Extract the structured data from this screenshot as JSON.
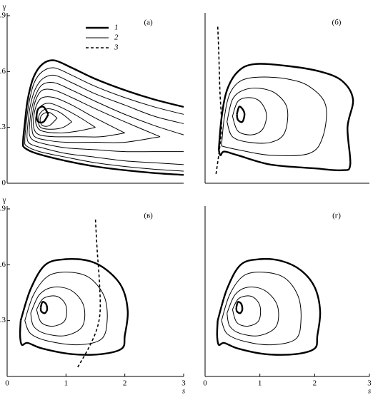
{
  "chart_data": [
    {
      "type": "contour",
      "panel": "(а)",
      "xlim": [
        0,
        3
      ],
      "ylim": [
        0,
        0.9
      ],
      "yticks": [
        0,
        0.3,
        0.6,
        0.9
      ],
      "ylabel": "γ",
      "series": [
        {
          "name": "1",
          "linestyle": "solid",
          "linewidth": 2.4,
          "curves": [
            {
              "x": [
                3,
                2.5,
                2,
                1.5,
                1.1,
                0.8,
                0.6,
                0.45,
                0.35,
                0.3,
                0.27,
                0.3,
                0.5,
                1,
                1.5,
                2,
                2.5,
                3
              ],
              "y": [
                0.41,
                0.45,
                0.5,
                0.56,
                0.62,
                0.66,
                0.64,
                0.57,
                0.45,
                0.32,
                0.22,
                0.19,
                0.16,
                0.12,
                0.09,
                0.07,
                0.055,
                0.045
              ]
            },
            {
              "x": [
                0.7,
                0.62,
                0.53,
                0.5,
                0.53,
                0.62,
                0.7
              ],
              "y": [
                0.37,
                0.41,
                0.4,
                0.36,
                0.33,
                0.33,
                0.37
              ]
            }
          ]
        },
        {
          "name": "2",
          "linestyle": "solid",
          "linewidth": 1,
          "curves": [
            {
              "x": [
                3,
                2.5,
                2,
                1.5,
                1.1,
                0.8,
                0.6,
                0.46,
                0.37,
                0.32,
                0.3,
                0.33,
                0.55,
                1,
                1.5,
                2,
                2.5,
                3
              ],
              "y": [
                0.37,
                0.41,
                0.46,
                0.52,
                0.58,
                0.62,
                0.6,
                0.54,
                0.43,
                0.31,
                0.23,
                0.2,
                0.17,
                0.14,
                0.11,
                0.09,
                0.075,
                0.065
              ]
            },
            {
              "x": [
                3,
                2.5,
                2,
                1.5,
                1.1,
                0.8,
                0.6,
                0.47,
                0.39,
                0.35,
                0.34,
                0.4,
                0.6,
                1,
                1.5,
                2,
                2.5,
                3
              ],
              "y": [
                0.32,
                0.36,
                0.42,
                0.48,
                0.54,
                0.58,
                0.56,
                0.5,
                0.41,
                0.31,
                0.24,
                0.21,
                0.19,
                0.16,
                0.14,
                0.12,
                0.11,
                0.1
              ]
            },
            {
              "x": [
                3,
                2.5,
                2,
                1.5,
                1.1,
                0.8,
                0.6,
                0.48,
                0.41,
                0.38,
                0.38,
                0.45,
                0.65,
                1,
                1.5,
                2,
                2.5,
                3
              ],
              "y": [
                0.26,
                0.31,
                0.37,
                0.44,
                0.5,
                0.54,
                0.53,
                0.47,
                0.39,
                0.31,
                0.26,
                0.23,
                0.21,
                0.19,
                0.18,
                0.17,
                0.17,
                0.17
              ]
            },
            {
              "x": [
                2.6,
                2,
                1.5,
                1.1,
                0.8,
                0.6,
                0.49,
                0.43,
                0.42,
                0.47,
                0.7,
                1,
                1.5,
                2,
                2.6
              ],
              "y": [
                0.25,
                0.33,
                0.4,
                0.46,
                0.5,
                0.5,
                0.45,
                0.37,
                0.3,
                0.25,
                0.23,
                0.22,
                0.22,
                0.22,
                0.25
              ]
            },
            {
              "x": [
                2,
                1.5,
                1.1,
                0.8,
                0.6,
                0.5,
                0.45,
                0.46,
                0.55,
                0.8,
                1.2,
                1.6,
                2
              ],
              "y": [
                0.27,
                0.35,
                0.42,
                0.46,
                0.46,
                0.42,
                0.35,
                0.29,
                0.26,
                0.25,
                0.25,
                0.25,
                0.27
              ]
            },
            {
              "x": [
                1.5,
                1.2,
                0.9,
                0.7,
                0.56,
                0.49,
                0.5,
                0.6,
                0.9,
                1.2,
                1.5
              ],
              "y": [
                0.3,
                0.36,
                0.41,
                0.43,
                0.41,
                0.36,
                0.31,
                0.28,
                0.27,
                0.28,
                0.3
              ]
            },
            {
              "x": [
                1.1,
                0.9,
                0.7,
                0.57,
                0.53,
                0.57,
                0.75,
                0.95,
                1.1
              ],
              "y": [
                0.33,
                0.38,
                0.4,
                0.38,
                0.34,
                0.3,
                0.29,
                0.3,
                0.33
              ]
            },
            {
              "x": [
                0.85,
                0.72,
                0.6,
                0.56,
                0.6,
                0.72,
                0.85
              ],
              "y": [
                0.35,
                0.38,
                0.37,
                0.34,
                0.31,
                0.31,
                0.35
              ]
            }
          ]
        },
        {
          "name": "3",
          "linestyle": "dashed",
          "linewidth": 1.6,
          "curves": []
        }
      ]
    },
    {
      "type": "contour",
      "panel": "(б)",
      "xlim": [
        0,
        3
      ],
      "ylim": [
        0,
        0.9
      ],
      "series": [
        {
          "linestyle": "solid",
          "linewidth": 2.4,
          "curves": [
            {
              "x": [
                0.25,
                0.3,
                0.4,
                0.6,
                0.9,
                1.5,
                2.1,
                2.5,
                2.7,
                2.6,
                2.65,
                2.5,
                2,
                1.2,
                0.6,
                0.35,
                0.28,
                0.25
              ],
              "y": [
                0.18,
                0.35,
                0.5,
                0.6,
                0.64,
                0.63,
                0.6,
                0.55,
                0.45,
                0.3,
                0.1,
                0.07,
                0.08,
                0.1,
                0.15,
                0.17,
                0.15,
                0.18
              ]
            },
            {
              "x": [
                0.58,
                0.62,
                0.68,
                0.72,
                0.68,
                0.6,
                0.58
              ],
              "y": [
                0.37,
                0.41,
                0.4,
                0.37,
                0.33,
                0.34,
                0.37
              ]
            }
          ]
        },
        {
          "linestyle": "solid",
          "linewidth": 1,
          "curves": [
            {
              "x": [
                0.3,
                0.35,
                0.45,
                0.65,
                1,
                1.5,
                1.9,
                2.2,
                2.15,
                1.9,
                1.2,
                0.6,
                0.3
              ],
              "y": [
                0.2,
                0.35,
                0.48,
                0.55,
                0.57,
                0.56,
                0.52,
                0.42,
                0.25,
                0.16,
                0.15,
                0.18,
                0.2
              ]
            },
            {
              "x": [
                0.4,
                0.5,
                0.7,
                1,
                1.3,
                1.5,
                1.45,
                1.2,
                0.8,
                0.5,
                0.4
              ],
              "y": [
                0.33,
                0.45,
                0.5,
                0.51,
                0.48,
                0.4,
                0.27,
                0.22,
                0.22,
                0.25,
                0.33
              ]
            },
            {
              "x": [
                0.5,
                0.6,
                0.8,
                1,
                1.12,
                1.05,
                0.85,
                0.6,
                0.5
              ],
              "y": [
                0.36,
                0.44,
                0.46,
                0.44,
                0.37,
                0.29,
                0.26,
                0.28,
                0.36
              ]
            }
          ]
        },
        {
          "linestyle": "dashed",
          "linewidth": 1.6,
          "curves": [
            {
              "x": [
                0.2,
                0.27,
                0.3,
                0.27,
                0.25,
                0.23
              ],
              "y": [
                0.05,
                0.2,
                0.32,
                0.5,
                0.7,
                0.85
              ]
            }
          ]
        }
      ]
    },
    {
      "type": "contour",
      "panel": "(в)",
      "xlim": [
        0,
        3
      ],
      "ylim": [
        0,
        0.9
      ],
      "xticks": [
        0,
        1,
        2,
        3
      ],
      "yticks": [
        0.3,
        0.6,
        0.9
      ],
      "xlabel": "s",
      "ylabel": "γ",
      "series": [
        {
          "linestyle": "solid",
          "linewidth": 2.4,
          "curves": [
            {
              "x": [
                0.23,
                0.4,
                0.65,
                1,
                1.4,
                1.7,
                1.95,
                2.05,
                2,
                1.95,
                1.6,
                1.1,
                0.6,
                0.35,
                0.25,
                0.22,
                0.23
              ],
              "y": [
                0.3,
                0.47,
                0.6,
                0.63,
                0.62,
                0.57,
                0.48,
                0.35,
                0.22,
                0.15,
                0.12,
                0.12,
                0.15,
                0.18,
                0.17,
                0.22,
                0.3
              ]
            },
            {
              "x": [
                0.57,
                0.6,
                0.66,
                0.68,
                0.64,
                0.58,
                0.57
              ],
              "y": [
                0.37,
                0.4,
                0.39,
                0.36,
                0.34,
                0.35,
                0.37
              ]
            }
          ]
        },
        {
          "linestyle": "solid",
          "linewidth": 1,
          "curves": [
            {
              "x": [
                0.3,
                0.45,
                0.7,
                1.05,
                1.4,
                1.65,
                1.7,
                1.6,
                1.2,
                0.7,
                0.4,
                0.3
              ],
              "y": [
                0.3,
                0.44,
                0.54,
                0.56,
                0.53,
                0.43,
                0.3,
                0.2,
                0.17,
                0.19,
                0.23,
                0.3
              ]
            },
            {
              "x": [
                0.4,
                0.55,
                0.8,
                1.1,
                1.3,
                1.28,
                1,
                0.65,
                0.45,
                0.4
              ],
              "y": [
                0.34,
                0.44,
                0.48,
                0.46,
                0.38,
                0.27,
                0.22,
                0.23,
                0.27,
                0.34
              ]
            },
            {
              "x": [
                0.5,
                0.62,
                0.85,
                1,
                0.98,
                0.78,
                0.58,
                0.5
              ],
              "y": [
                0.36,
                0.42,
                0.43,
                0.38,
                0.3,
                0.27,
                0.29,
                0.36
              ]
            }
          ]
        },
        {
          "linestyle": "dashed",
          "linewidth": 1.6,
          "curves": [
            {
              "x": [
                1.2,
                1.38,
                1.52,
                1.58,
                1.57,
                1.53,
                1.5
              ],
              "y": [
                0.05,
                0.15,
                0.25,
                0.35,
                0.5,
                0.68,
                0.85
              ]
            }
          ]
        }
      ]
    },
    {
      "type": "contour",
      "panel": "(г)",
      "xlim": [
        0,
        3
      ],
      "ylim": [
        0,
        0.9
      ],
      "xticks": [
        0,
        1,
        2,
        3
      ],
      "xlabel": "s",
      "series": [
        {
          "linestyle": "solid",
          "linewidth": 2.4,
          "curves": [
            {
              "x": [
                0.23,
                0.4,
                0.65,
                1,
                1.4,
                1.75,
                2,
                2.1,
                2.05,
                2,
                1.65,
                1.1,
                0.6,
                0.35,
                0.25,
                0.22,
                0.23
              ],
              "y": [
                0.3,
                0.47,
                0.6,
                0.63,
                0.62,
                0.57,
                0.48,
                0.35,
                0.22,
                0.15,
                0.12,
                0.12,
                0.15,
                0.18,
                0.17,
                0.22,
                0.3
              ]
            },
            {
              "x": [
                0.57,
                0.6,
                0.66,
                0.68,
                0.64,
                0.58,
                0.57
              ],
              "y": [
                0.37,
                0.4,
                0.39,
                0.36,
                0.34,
                0.35,
                0.37
              ]
            }
          ]
        },
        {
          "linestyle": "solid",
          "linewidth": 1,
          "curves": [
            {
              "x": [
                0.3,
                0.45,
                0.7,
                1.05,
                1.45,
                1.7,
                1.75,
                1.65,
                1.2,
                0.7,
                0.4,
                0.3
              ],
              "y": [
                0.3,
                0.44,
                0.54,
                0.56,
                0.53,
                0.43,
                0.3,
                0.2,
                0.17,
                0.19,
                0.23,
                0.3
              ]
            },
            {
              "x": [
                0.4,
                0.55,
                0.8,
                1.1,
                1.32,
                1.3,
                1,
                0.65,
                0.45,
                0.4
              ],
              "y": [
                0.34,
                0.44,
                0.48,
                0.46,
                0.38,
                0.27,
                0.22,
                0.23,
                0.27,
                0.34
              ]
            },
            {
              "x": [
                0.5,
                0.62,
                0.85,
                1,
                0.98,
                0.78,
                0.58,
                0.5
              ],
              "y": [
                0.36,
                0.42,
                0.43,
                0.38,
                0.3,
                0.27,
                0.29,
                0.36
              ]
            }
          ]
        }
      ]
    }
  ]
}
